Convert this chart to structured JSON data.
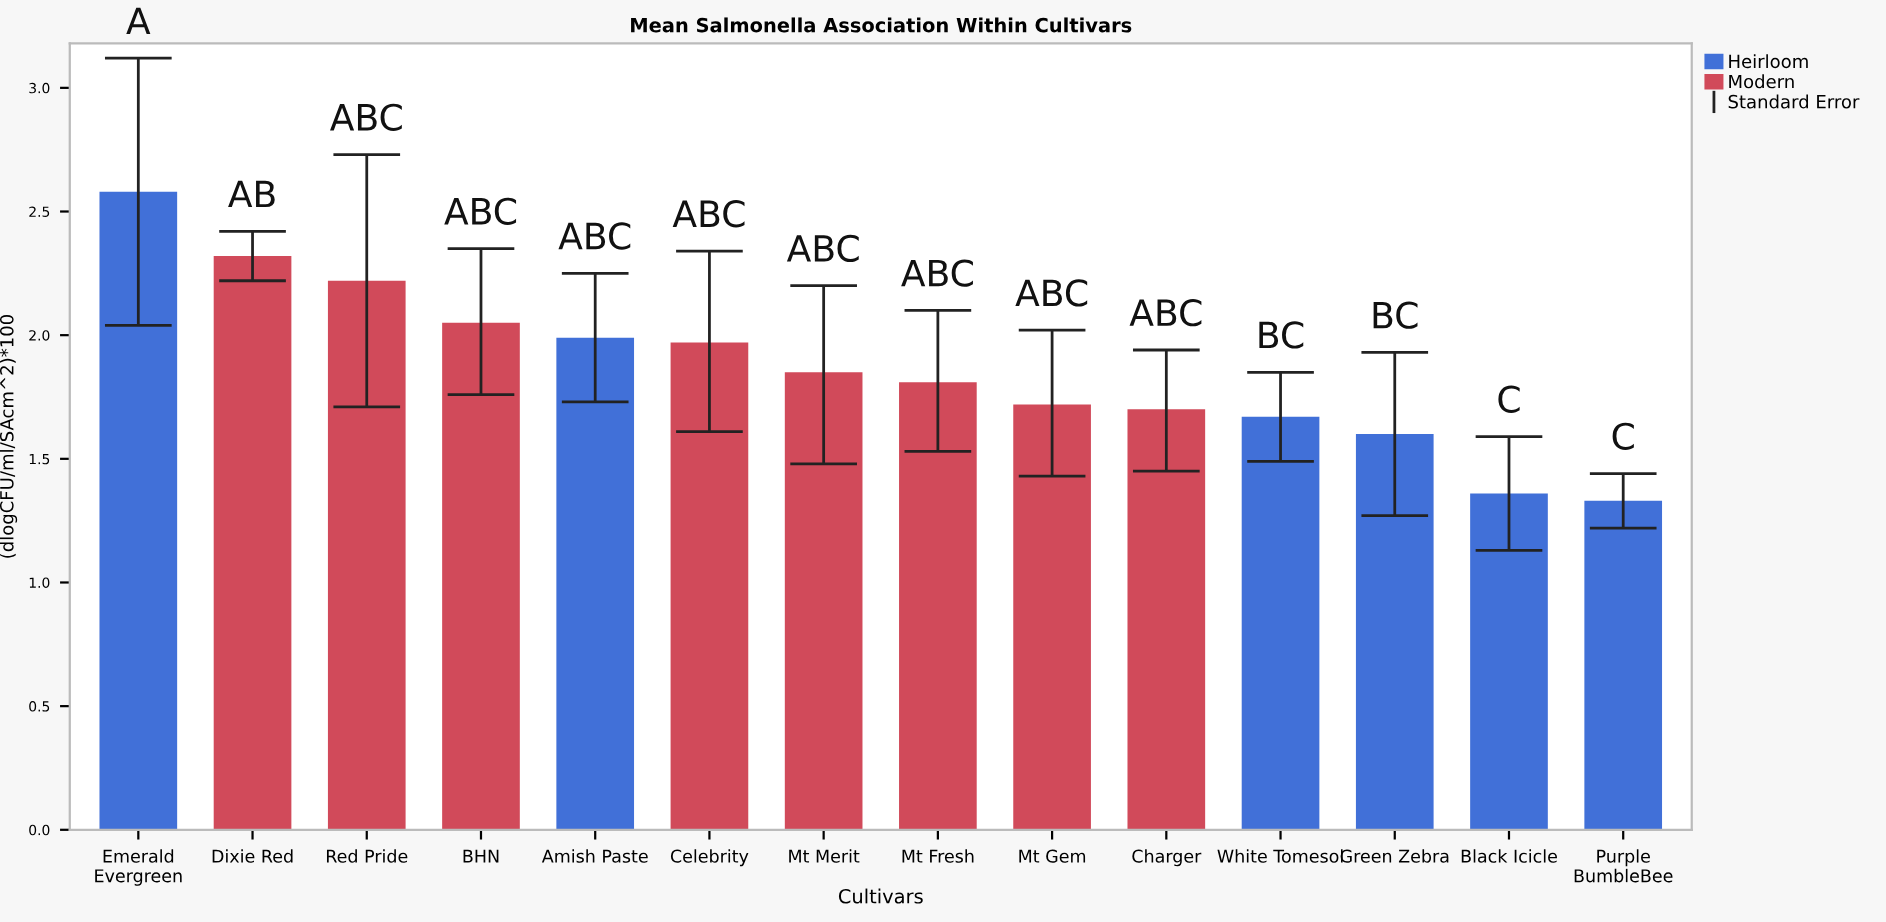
{
  "chart_data": {
    "type": "bar",
    "title": "Mean Salmonella Association Within Cultivars",
    "xlabel": "Cultivars",
    "ylabel": "(dlogCFU/ml/SAcm^2)*100",
    "categories": [
      "Emerald\nEvergreen",
      "Dixie Red",
      "Red Pride",
      "BHN",
      "Amish Paste",
      "Celebrity",
      "Mt Merit",
      "Mt Fresh",
      "Mt Gem",
      "Charger",
      "White Tomesol",
      "Green Zebra",
      "Black Icicle",
      "Purple\nBumbleBee"
    ],
    "series": [
      {
        "name": "Heirloom",
        "color": "#4170d8",
        "values": [
          2.58,
          null,
          null,
          null,
          1.99,
          null,
          null,
          null,
          null,
          null,
          1.67,
          1.6,
          1.36,
          1.33
        ],
        "errors": [
          [
            2.04,
            3.12
          ],
          null,
          null,
          null,
          [
            1.73,
            2.25
          ],
          null,
          null,
          null,
          null,
          null,
          [
            1.49,
            1.85
          ],
          [
            1.27,
            1.93
          ],
          [
            1.13,
            1.59
          ],
          [
            1.22,
            1.44
          ]
        ]
      },
      {
        "name": "Modern",
        "color": "#d14a5a",
        "values": [
          null,
          2.32,
          2.22,
          2.05,
          null,
          1.97,
          1.85,
          1.81,
          1.72,
          1.7,
          null,
          null,
          null,
          null
        ],
        "errors": [
          null,
          [
            2.22,
            2.42
          ],
          [
            1.71,
            2.73
          ],
          [
            1.76,
            2.35
          ],
          null,
          [
            1.61,
            2.34
          ],
          [
            1.48,
            2.2
          ],
          [
            1.53,
            2.1
          ],
          [
            1.43,
            2.02
          ],
          [
            1.45,
            1.94
          ],
          null,
          null,
          null,
          null
        ]
      }
    ],
    "ylim": [
      0,
      3.18
    ],
    "yticks": [
      {
        "value": 0,
        "label": "0.0"
      },
      {
        "value": 0.5,
        "label": "0.5"
      },
      {
        "value": 1,
        "label": "1.0"
      },
      {
        "value": 1.5,
        "label": "1.5"
      },
      {
        "value": 2,
        "label": "2.0"
      },
      {
        "value": 2.5,
        "label": "2.5"
      },
      {
        "value": 3,
        "label": "3.0"
      }
    ],
    "grid": false,
    "legend": "top right",
    "annotations": [
      "A",
      "AB",
      "ABC",
      "ABC",
      "ABC",
      "ABC",
      "ABC",
      "ABC",
      "ABC",
      "ABC",
      "BC",
      "BC",
      "C",
      "C",
      "Standard Error"
    ]
  }
}
